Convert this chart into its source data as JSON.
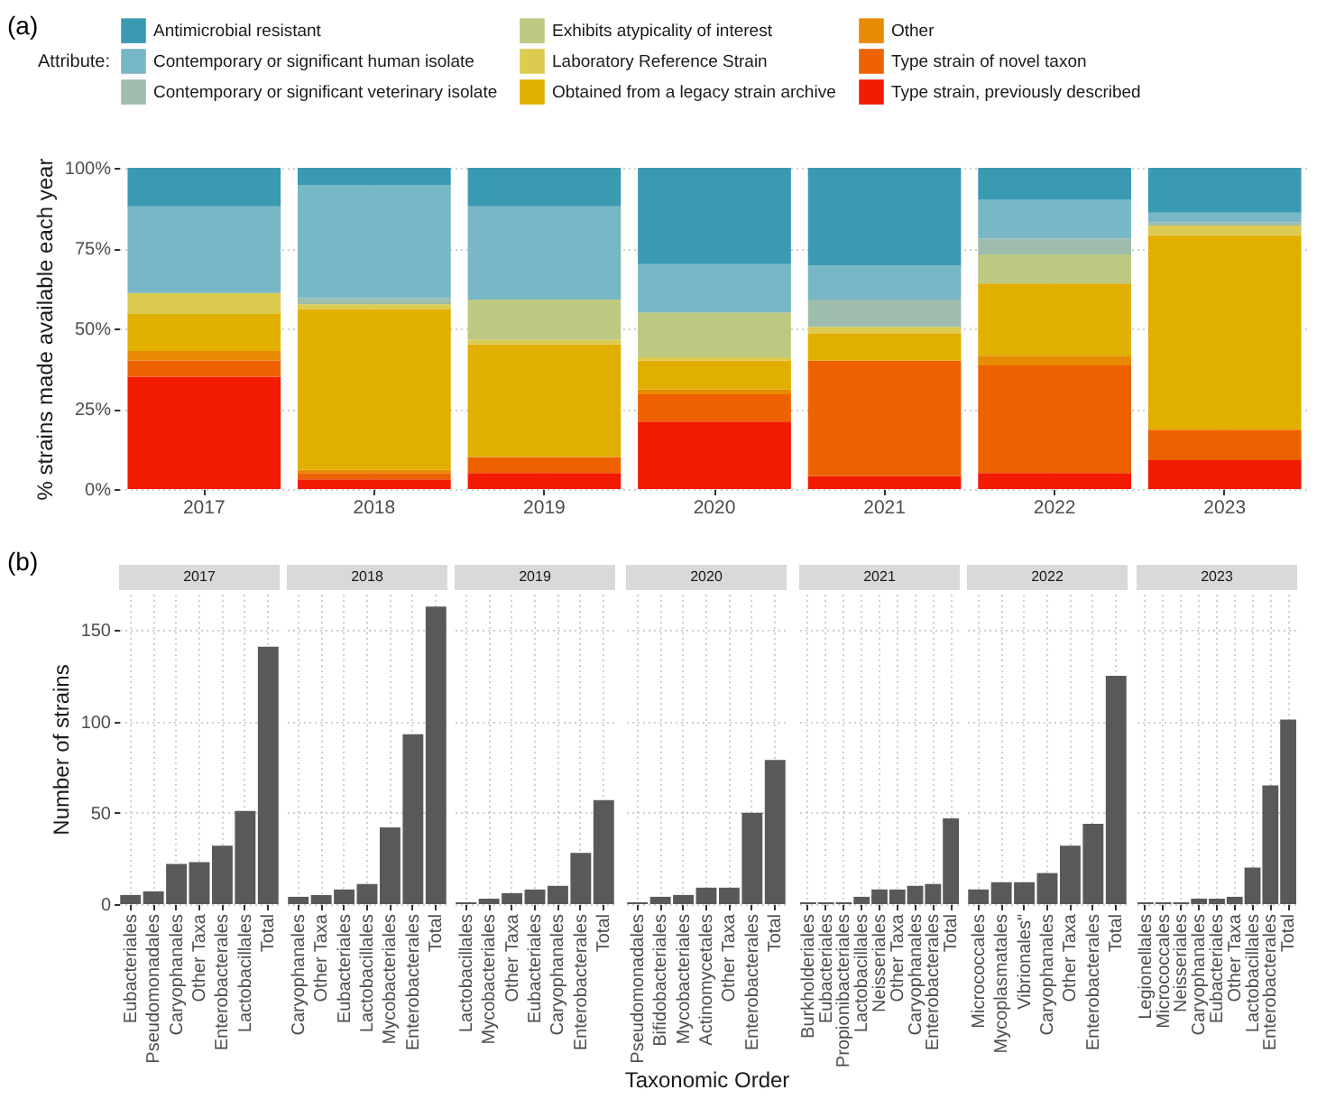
{
  "chart_data": [
    {
      "type": "bar",
      "stacked": true,
      "annotations": [
        "(a)"
      ],
      "ylabel": "% strains made available each year",
      "legend_title": "Attribute:",
      "legend": "top",
      "grid": true,
      "categories": [
        "2017",
        "2018",
        "2019",
        "2020",
        "2021",
        "2022",
        "2023"
      ],
      "ylim": [
        0,
        100
      ],
      "yticks": [
        {
          "value": 0,
          "label": "0%"
        },
        {
          "value": 25,
          "label": "25%"
        },
        {
          "value": 50,
          "label": "50%"
        },
        {
          "value": 75,
          "label": "75%"
        },
        {
          "value": 100,
          "label": "100%"
        }
      ],
      "series": [
        {
          "name": "Type strain, previously described",
          "color": "#f21a00",
          "values": [
            35,
            3,
            5,
            21,
            4,
            5,
            9
          ]
        },
        {
          "name": "Type strain of novel taxon",
          "color": "#ee6100",
          "values": [
            5,
            2,
            5,
            8.5,
            36,
            33.5,
            9.5
          ]
        },
        {
          "name": "Other",
          "color": "#e98a05",
          "values": [
            3,
            1,
            null,
            1.5,
            null,
            3,
            null
          ]
        },
        {
          "name": "Obtained from a legacy strain archive",
          "color": "#e1af00",
          "values": [
            11.5,
            50,
            35,
            9,
            8.5,
            22.5,
            60.5
          ]
        },
        {
          "name": "Laboratory Reference Strain",
          "color": "#dccb4e",
          "values": [
            6.5,
            1.5,
            1.5,
            1,
            2,
            null,
            3
          ]
        },
        {
          "name": "Exhibits atypicality of interest",
          "color": "#bdc881",
          "values": [
            null,
            null,
            12.5,
            14,
            null,
            9,
            null
          ]
        },
        {
          "name": "Contemporary or significant veterinary isolate",
          "color": "#9ebdac",
          "values": [
            null,
            2,
            null,
            null,
            8.5,
            5,
            1
          ]
        },
        {
          "name": "Contemporary or significant human isolate",
          "color": "#78b7c5",
          "values": [
            27,
            35,
            29,
            15,
            10.5,
            12,
            3
          ]
        },
        {
          "name": "Antimicrobial resistant",
          "color": "#3a9ab2",
          "values": [
            12,
            5.5,
            12,
            30,
            30.5,
            10,
            14
          ]
        }
      ]
    },
    {
      "type": "bar",
      "title": "2017",
      "annotations": [
        "(b)"
      ],
      "ylabel": "Number of strains",
      "grid": true,
      "ylim": [
        0,
        170
      ],
      "yticks": [
        0,
        50,
        100,
        150
      ],
      "color": "#595959",
      "categories": [
        "Eubacteriales",
        "Pseudomonadales",
        "Caryophanales",
        "Other Taxa",
        "Enterobacterales",
        "Lactobacillales",
        "Total"
      ],
      "values": [
        5,
        7,
        22,
        23,
        32,
        51,
        141
      ]
    },
    {
      "type": "bar",
      "title": "2018",
      "tick_labels": "x",
      "grid": true,
      "ylim": [
        0,
        170
      ],
      "yticks": [
        0,
        50,
        100,
        150
      ],
      "color": "#595959",
      "categories": [
        "Caryophanales",
        "Other Taxa",
        "Eubacteriales",
        "Lactobacillales",
        "Mycobacteriales",
        "Enterobacterales",
        "Total"
      ],
      "values": [
        4,
        5,
        8,
        11,
        42,
        93,
        163
      ]
    },
    {
      "type": "bar",
      "title": "2019",
      "tick_labels": "x",
      "grid": true,
      "ylim": [
        0,
        170
      ],
      "yticks": [
        0,
        50,
        100,
        150
      ],
      "color": "#595959",
      "categories": [
        "Lactobacillales",
        "Mycobacteriales",
        "Other Taxa",
        "Eubacteriales",
        "Caryophanales",
        "Enterobacterales",
        "Total"
      ],
      "values": [
        1,
        3,
        6,
        8,
        10,
        28,
        57
      ]
    },
    {
      "type": "bar",
      "title": "2020",
      "xlabel": "Taxonomic Order",
      "tick_labels": "x",
      "grid": true,
      "ylim": [
        0,
        170
      ],
      "yticks": [
        0,
        50,
        100,
        150
      ],
      "color": "#595959",
      "categories": [
        "Pseudomonadales",
        "Bifidobacteriales",
        "Mycobacteriales",
        "Actinomycetales",
        "Other Taxa",
        "Enterobacterales",
        "Total"
      ],
      "values": [
        1,
        4,
        5,
        9,
        9,
        50,
        79
      ]
    },
    {
      "type": "bar",
      "title": "2021",
      "tick_labels": "x",
      "grid": true,
      "ylim": [
        0,
        170
      ],
      "yticks": [
        0,
        50,
        100,
        150
      ],
      "color": "#595959",
      "categories": [
        "Burkholderiales",
        "Eubacteriales",
        "Propionibacteriales",
        "Lactobacillales",
        "Neisseriales",
        "Other Taxa",
        "Caryophanales",
        "Enterobacterales",
        "Total"
      ],
      "values": [
        1,
        1,
        1,
        4,
        8,
        8,
        10,
        11,
        47
      ]
    },
    {
      "type": "bar",
      "title": "2022",
      "tick_labels": "x",
      "grid": true,
      "ylim": [
        0,
        170
      ],
      "yticks": [
        0,
        50,
        100,
        150
      ],
      "color": "#595959",
      "categories": [
        "Micrococcales",
        "Mycoplasmatales",
        "Vibrionales\"",
        "Caryophanales",
        "Other Taxa",
        "Enterobacterales",
        "Total"
      ],
      "values": [
        8,
        12,
        12,
        17,
        32,
        44,
        125
      ]
    },
    {
      "type": "bar",
      "title": "2023",
      "tick_labels": "x",
      "grid": true,
      "ylim": [
        0,
        170
      ],
      "yticks": [
        0,
        50,
        100,
        150
      ],
      "color": "#595959",
      "categories": [
        "Legionellales",
        "Micrococcales",
        "Neisseriales",
        "Caryophanales",
        "Eubacteriales",
        "Other Taxa",
        "Lactobacillales",
        "Enterobacterales",
        "Total"
      ],
      "values": [
        1,
        1,
        1,
        3,
        3,
        4,
        20,
        65,
        101
      ]
    }
  ]
}
